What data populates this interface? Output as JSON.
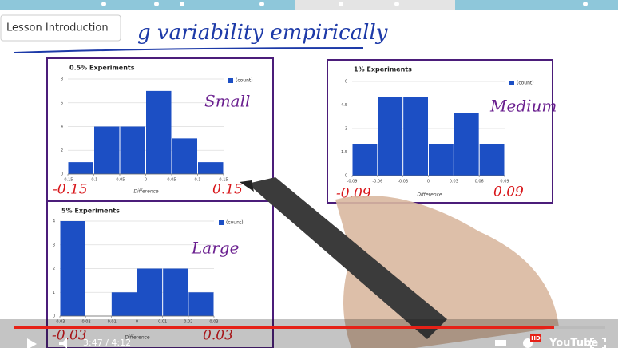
{
  "tooltip": "Lesson Introduction",
  "heading": "g variability empirically",
  "charts": [
    {
      "type": "histogram",
      "title": "0.5% Experiments",
      "legend": "(count)",
      "x_label": "Difference",
      "color": "#1c4fc4",
      "bins": [
        -0.15,
        -0.1,
        -0.05,
        0,
        0.05,
        0.1,
        0.15
      ],
      "values": [
        1,
        4,
        4,
        7,
        3,
        1
      ],
      "xlim": [
        -0.15,
        0.15
      ],
      "xticks": [
        -0.15,
        -0.1,
        -0.05,
        0,
        0.05,
        0.1,
        0.15
      ],
      "ylim": [
        0,
        8
      ],
      "yticks": [
        0,
        2,
        4,
        6,
        8
      ],
      "grid": true,
      "annotation": "Small",
      "left_note": "-0.15",
      "right_note": "0.15"
    },
    {
      "type": "histogram",
      "title": "1% Experiments",
      "legend": "(count)",
      "x_label": "Difference",
      "color": "#1c4fc4",
      "bins": [
        -0.09,
        -0.06,
        -0.03,
        0,
        0.03,
        0.06,
        0.09
      ],
      "values": [
        2,
        5,
        5,
        2,
        4,
        2
      ],
      "xlim": [
        -0.09,
        0.09
      ],
      "xticks": [
        -0.09,
        -0.06,
        -0.03,
        0,
        0.03,
        0.06,
        0.09
      ],
      "ylim": [
        0,
        6
      ],
      "yticks": [
        0,
        1.5,
        3,
        4.5,
        6
      ],
      "grid": true,
      "annotation": "Medium",
      "left_note": "-0.09",
      "right_note": "0.09"
    },
    {
      "type": "histogram",
      "title": "5% Experiments",
      "legend": "(count)",
      "x_label": "Difference",
      "color": "#1c4fc4",
      "bins": [
        -0.03,
        -0.02,
        -0.01,
        0,
        0.01,
        0.02,
        0.03
      ],
      "values": [
        4,
        0,
        1,
        2,
        2,
        1
      ],
      "xlim": [
        -0.03,
        0.03
      ],
      "xticks": [
        -0.03,
        -0.02,
        -0.01,
        0,
        0.01,
        0.02,
        0.03
      ],
      "ylim": [
        0,
        4
      ],
      "yticks": [
        0,
        1,
        2,
        3,
        4
      ],
      "grid": true,
      "annotation": "Large",
      "left_note": "-0.03",
      "right_note": "0.03"
    }
  ],
  "player": {
    "time": "3:47 / 4:12",
    "quality": "HD",
    "brand": "YouTube"
  }
}
